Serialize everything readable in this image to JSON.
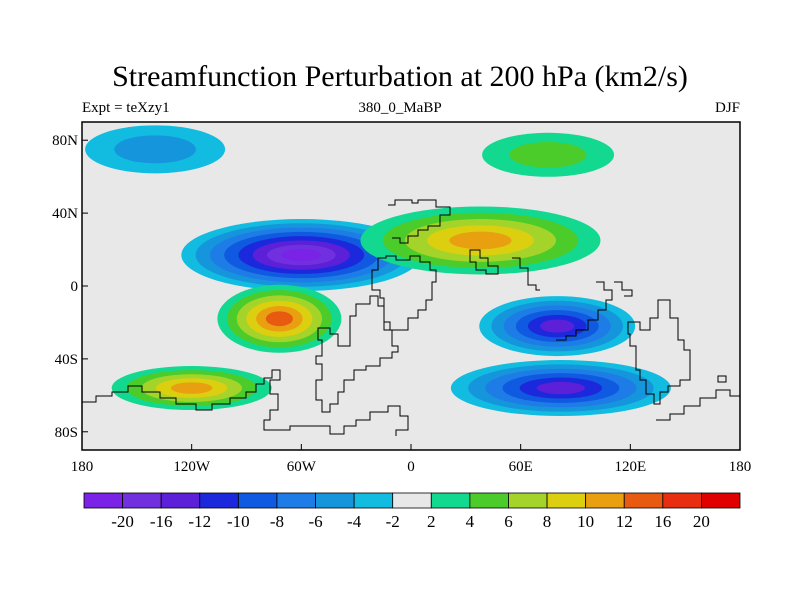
{
  "title": "Streamfunction Perturbation at 200 hPa (km2/s)",
  "left_subtitle": "Expt = teXzy1",
  "center_subtitle": "380_0_MaBP",
  "right_subtitle": "DJF",
  "colors": {
    "background": "#ffffff",
    "land_outline": "#000000",
    "zero_band": "#e8e8e8"
  },
  "chart_data": {
    "type": "heatmap",
    "title": "Streamfunction Perturbation at 200 hPa (km2/s)",
    "projection": "cylindrical equidistant",
    "xlim": [
      -180,
      180
    ],
    "ylim": [
      -90,
      90
    ],
    "x_ticks": [
      {
        "value": -180,
        "label": "180"
      },
      {
        "value": -120,
        "label": "120W"
      },
      {
        "value": -60,
        "label": "60W"
      },
      {
        "value": 0,
        "label": "0"
      },
      {
        "value": 60,
        "label": "60E"
      },
      {
        "value": 120,
        "label": "120E"
      },
      {
        "value": 180,
        "label": "180"
      }
    ],
    "y_ticks": [
      {
        "value": 80,
        "label": "80N"
      },
      {
        "value": 40,
        "label": "40N"
      },
      {
        "value": 0,
        "label": "0"
      },
      {
        "value": -40,
        "label": "40S"
      },
      {
        "value": -80,
        "label": "80S"
      }
    ],
    "colorbar": {
      "levels": [
        -20,
        -16,
        -12,
        -10,
        -8,
        -6,
        -4,
        -2,
        2,
        4,
        6,
        8,
        10,
        12,
        16,
        20
      ],
      "labels": [
        "-20",
        "-16",
        "-12",
        "-10",
        "-8",
        "-6",
        "-4",
        "-2",
        "2",
        "4",
        "6",
        "8",
        "10",
        "12",
        "16",
        "20"
      ],
      "colors": [
        "#7a22e6",
        "#7030e0",
        "#5c20d8",
        "#1c28dc",
        "#0f5ae0",
        "#1e7ce6",
        "#1596dc",
        "#11bce0",
        "#e8e8e8",
        "#12d890",
        "#4ccc2a",
        "#a4d42a",
        "#dccf10",
        "#e8a010",
        "#e85a10",
        "#e82e10",
        "#e00000"
      ]
    },
    "features": [
      {
        "name": "Streamfunction low over South America / subtropical Atlantic",
        "lon": -60,
        "lat": 17,
        "peak": -21
      },
      {
        "name": "Streamfunction high over southeast Pacific",
        "lon": -72,
        "lat": -18,
        "peak": 14
      },
      {
        "name": "Streamfunction high over South Pacific high latitudes",
        "lon": -120,
        "lat": -56,
        "peak": 11
      },
      {
        "name": "Streamfunction high over Eurasia / Middle East",
        "lon": 38,
        "lat": 25,
        "peak": 11
      },
      {
        "name": "Streamfunction low over Indian Ocean",
        "lon": 80,
        "lat": -22,
        "peak": -13
      },
      {
        "name": "Streamfunction low over Southern Ocean",
        "lon": 82,
        "lat": -56,
        "peak": -12
      },
      {
        "name": "Streamfunction low over North Pacific",
        "lon": -140,
        "lat": 75,
        "peak": -5
      },
      {
        "name": "Streamfunction high over northern Asia",
        "lon": 75,
        "lat": 72,
        "peak": 5
      }
    ]
  }
}
